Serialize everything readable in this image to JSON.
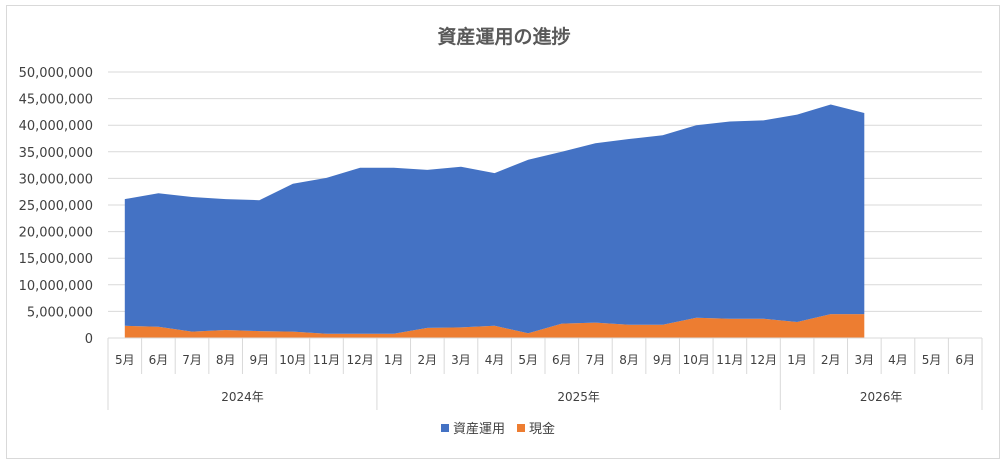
{
  "chart_data": {
    "type": "area",
    "stacked": true,
    "title": "資産運用の進捗",
    "ylim": [
      0,
      50000000
    ],
    "y_ticks": [
      "0",
      "5,000,000",
      "10,000,000",
      "15,000,000",
      "20,000,000",
      "25,000,000",
      "30,000,000",
      "35,000,000",
      "40,000,000",
      "45,000,000",
      "50,000,000"
    ],
    "grid": true,
    "legend": "bottom",
    "categories": [
      "5月",
      "6月",
      "7月",
      "8月",
      "9月",
      "10月",
      "11月",
      "12月",
      "1月",
      "2月",
      "3月",
      "4月",
      "5月",
      "6月",
      "7月",
      "8月",
      "9月",
      "10月",
      "11月",
      "12月",
      "1月",
      "2月",
      "3月",
      "4月",
      "5月",
      "6月"
    ],
    "year_groups": [
      {
        "label": "2024年",
        "start": 0,
        "end": 7
      },
      {
        "label": "2025年",
        "start": 8,
        "end": 19
      },
      {
        "label": "2026年",
        "start": 20,
        "end": 25
      }
    ],
    "series": [
      {
        "name": "現金",
        "color": "#ED7D31",
        "values": [
          2300000,
          2100000,
          1200000,
          1500000,
          1300000,
          1200000,
          800000,
          800000,
          800000,
          1900000,
          2000000,
          2300000,
          900000,
          2700000,
          2900000,
          2500000,
          2500000,
          3800000,
          3600000,
          3600000,
          3000000,
          4500000,
          4500000,
          null,
          null,
          null
        ]
      },
      {
        "name": "資産運用",
        "color": "#4472C4",
        "values": [
          23800000,
          25100000,
          25300000,
          24600000,
          24600000,
          27800000,
          29300000,
          31200000,
          31200000,
          29700000,
          30200000,
          28700000,
          32600000,
          32300000,
          33700000,
          34900000,
          35600000,
          36200000,
          37100000,
          37300000,
          39000000,
          39400000,
          37800000,
          null,
          null,
          null
        ]
      }
    ]
  }
}
